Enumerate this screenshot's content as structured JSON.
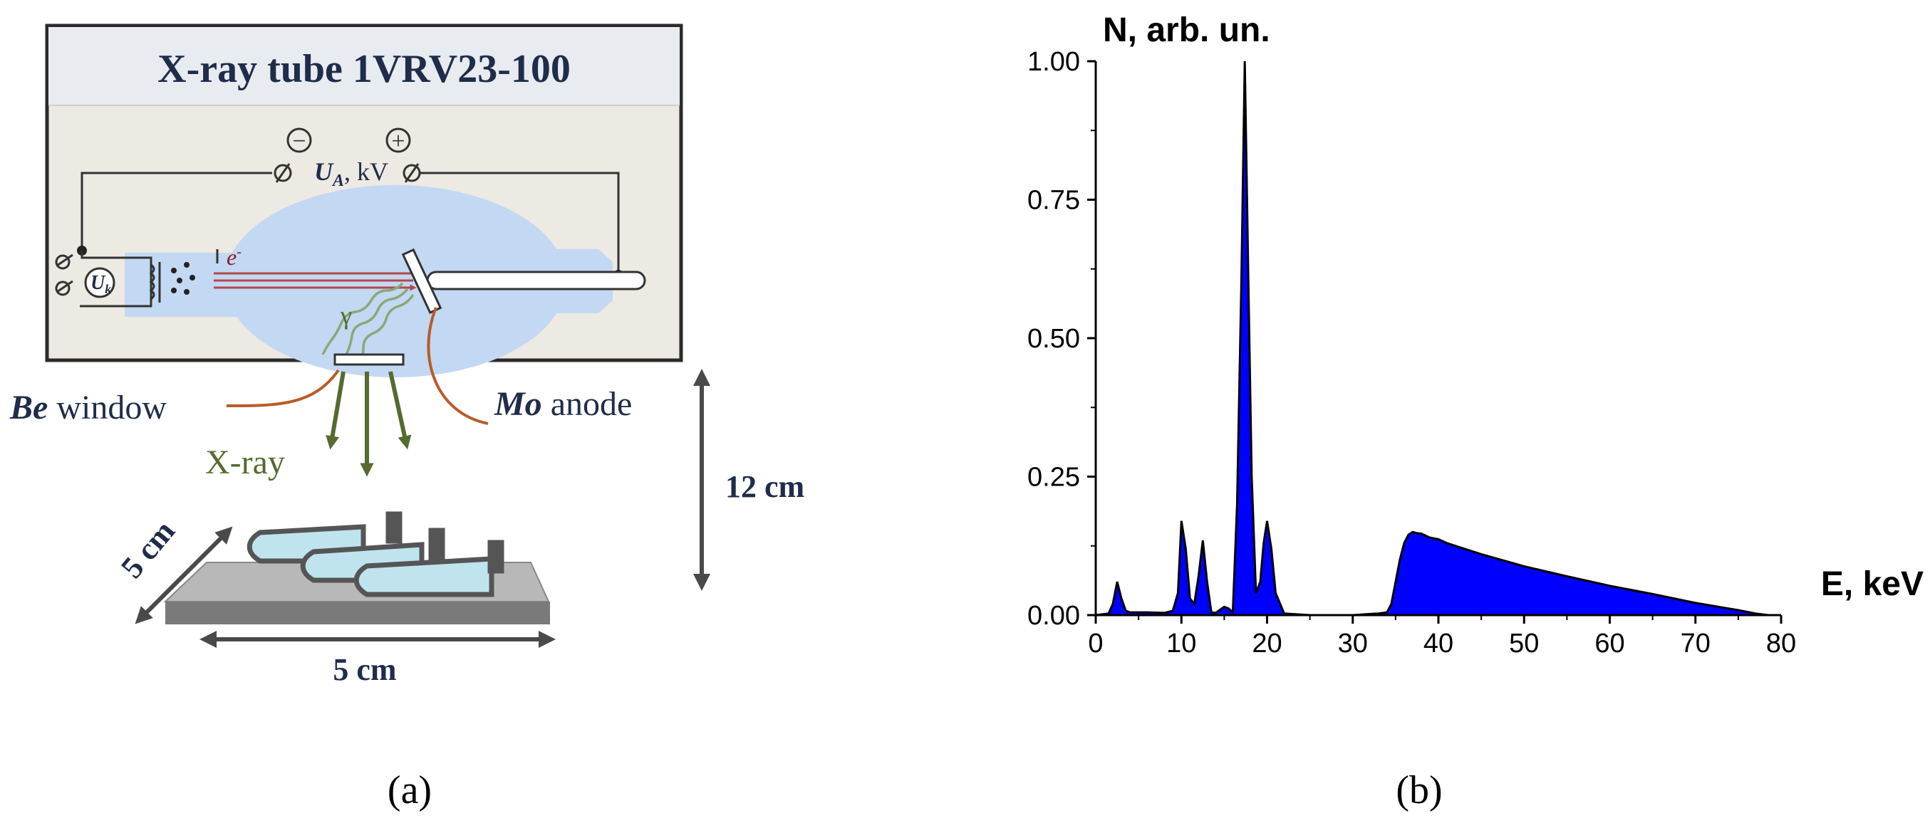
{
  "panel_a": {
    "title": "X-ray tube 1VRV23-100",
    "minus_sign": "−",
    "plus_sign": "+",
    "voltage_symbol": "U",
    "voltage_subscript": "A",
    "voltage_unit": ", kV",
    "cathode_symbol": "U",
    "cathode_subscript": "k",
    "electron_symbol": "e",
    "electron_superscript": "-",
    "gamma_symbol": "γ",
    "window_material": "Be",
    "window_word": "window",
    "anode_material": "Mo",
    "anode_word": "anode",
    "xray_label": "X-ray",
    "height_label": "12 cm",
    "depth_label": "5 cm",
    "width_label": "5 cm",
    "caption": "(a)",
    "colors": {
      "title_bar": "#e8ecf0",
      "tube_panel": "#ede9e3",
      "tube_glass": "#c3d8f2",
      "electron_beam": "#b04848",
      "xray_waves": "#8aa878",
      "lead_wire": "#b85c28",
      "xray_arrow": "#556b2f",
      "label_text": "#1f2d4a",
      "xray_text": "#556b2f"
    }
  },
  "panel_b": {
    "caption": "(b)",
    "chart_data": {
      "type": "area",
      "title": "",
      "xlabel": "E, keV",
      "ylabel": "N, arb. un.",
      "xlim": [
        0,
        80
      ],
      "ylim": [
        0,
        1.0
      ],
      "xticks": [
        "0",
        "10",
        "20",
        "30",
        "40",
        "50",
        "60",
        "70",
        "80"
      ],
      "yticks": [
        "0.00",
        "0.25",
        "0.50",
        "0.75",
        "1.00"
      ],
      "grid": false,
      "fill_color": "#0000ff",
      "line_color": "#000000",
      "x": [
        0.0,
        1.5,
        2.0,
        2.5,
        3.0,
        3.5,
        4.0,
        6.0,
        8.0,
        9.0,
        9.6,
        10.0,
        10.5,
        11.0,
        11.5,
        12.0,
        12.5,
        13.0,
        13.5,
        14.0,
        15.0,
        15.5,
        16.0,
        16.5,
        17.0,
        17.4,
        17.8,
        18.2,
        18.7,
        19.2,
        19.6,
        20.0,
        20.5,
        21.0,
        22.0,
        25.0,
        28.0,
        30.0,
        32.0,
        33.0,
        34.0,
        34.5,
        35.0,
        35.5,
        36.0,
        36.5,
        37.0,
        37.5,
        38.0,
        39.0,
        40.0,
        41.0,
        42.0,
        45.0,
        50.0,
        55.0,
        60.0,
        65.0,
        70.0,
        75.0,
        77.0,
        78.5
      ],
      "y": [
        0.0,
        0.003,
        0.02,
        0.06,
        0.03,
        0.008,
        0.005,
        0.005,
        0.004,
        0.008,
        0.04,
        0.17,
        0.12,
        0.03,
        0.02,
        0.07,
        0.135,
        0.06,
        0.005,
        0.004,
        0.015,
        0.012,
        0.005,
        0.2,
        0.6,
        1.0,
        0.62,
        0.25,
        0.04,
        0.06,
        0.13,
        0.17,
        0.12,
        0.04,
        0.003,
        0.0,
        0.0,
        0.0,
        0.002,
        0.003,
        0.005,
        0.02,
        0.06,
        0.1,
        0.13,
        0.145,
        0.15,
        0.148,
        0.147,
        0.14,
        0.137,
        0.13,
        0.125,
        0.11,
        0.088,
        0.07,
        0.053,
        0.038,
        0.022,
        0.009,
        0.003,
        0.0
      ]
    }
  }
}
